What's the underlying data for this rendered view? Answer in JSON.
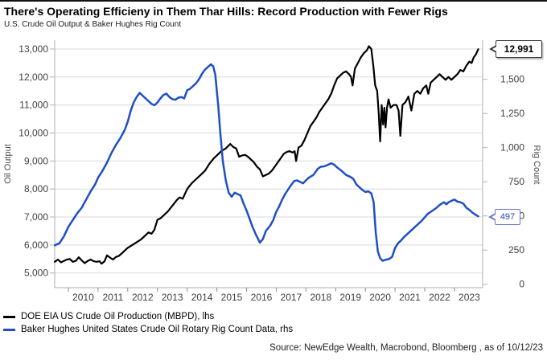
{
  "title": "There's Operating Efficieny in Them Thar Hills: Record Production with Fewer Rigs",
  "subtitle": "U.S. Crude Oil Output & Baker Hughes Rig Count",
  "source": "Source: NewEdge Wealth, Macrobond, Bloomberg , as of 10/12/23",
  "callouts": {
    "production": "12,991",
    "rigs": "497"
  },
  "colors": {
    "production": "#000000",
    "rigs": "#1f4fc5",
    "grid": "#d9d9d9",
    "axis": "#b0b0b0",
    "tick_text": "#404040"
  },
  "chart_data": {
    "type": "line",
    "title": "There's Operating Efficieny in Them Thar Hills: Record Production with Fewer Rigs",
    "subtitle": "U.S. Crude Oil Output & Baker Hughes Rig Count",
    "grid": "horizontal",
    "legend_position": "bottom-left",
    "x_axis": {
      "tick_values": [
        2010,
        2011,
        2012,
        2013,
        2014,
        2015,
        2016,
        2017,
        2018,
        2019,
        2020,
        2021,
        2022,
        2023
      ],
      "tick_labels": [
        "2010",
        "2011",
        "2012",
        "2013",
        "2014",
        "2015",
        "2016",
        "2017",
        "2018",
        "2019",
        "2020",
        "2021",
        "2022",
        "2023"
      ],
      "range": [
        2009.54,
        2023.95
      ]
    },
    "left_axis": {
      "label": "Oil Output",
      "tick_values": [
        5000,
        6000,
        7000,
        8000,
        9000,
        10000,
        11000,
        12000,
        13000
      ],
      "tick_labels": [
        "5,000",
        "6,000",
        "7,000",
        "8,000",
        "9,000",
        "10,000",
        "11,000",
        "12,000",
        "13,000"
      ],
      "range": [
        4475,
        13315
      ]
    },
    "right_axis": {
      "label": "Rig Count",
      "tick_values": [
        0,
        250,
        500,
        750,
        1000,
        1250,
        1500
      ],
      "tick_labels": [
        "0",
        "250",
        "500",
        "750",
        "1,000",
        "1,250",
        "1,500"
      ],
      "range": [
        -25,
        1786
      ]
    },
    "series": [
      {
        "name": "DOE EIA US Crude Oil Production (MBPD), lhs",
        "axis": "left",
        "color": "#000000",
        "last_value": 12991,
        "points": [
          [
            2009.54,
            5400
          ],
          [
            2009.65,
            5480
          ],
          [
            2009.75,
            5380
          ],
          [
            2009.85,
            5430
          ],
          [
            2009.95,
            5480
          ],
          [
            2010.05,
            5500
          ],
          [
            2010.15,
            5400
          ],
          [
            2010.25,
            5430
          ],
          [
            2010.35,
            5560
          ],
          [
            2010.45,
            5450
          ],
          [
            2010.55,
            5350
          ],
          [
            2010.65,
            5430
          ],
          [
            2010.75,
            5480
          ],
          [
            2010.85,
            5420
          ],
          [
            2010.95,
            5400
          ],
          [
            2011.05,
            5420
          ],
          [
            2011.12,
            5330
          ],
          [
            2011.22,
            5420
          ],
          [
            2011.3,
            5630
          ],
          [
            2011.4,
            5550
          ],
          [
            2011.5,
            5480
          ],
          [
            2011.6,
            5570
          ],
          [
            2011.7,
            5610
          ],
          [
            2011.8,
            5700
          ],
          [
            2011.9,
            5800
          ],
          [
            2012.0,
            5900
          ],
          [
            2012.15,
            6000
          ],
          [
            2012.3,
            6100
          ],
          [
            2012.45,
            6200
          ],
          [
            2012.6,
            6350
          ],
          [
            2012.7,
            6450
          ],
          [
            2012.8,
            6400
          ],
          [
            2012.9,
            6550
          ],
          [
            2013.0,
            6900
          ],
          [
            2013.1,
            6950
          ],
          [
            2013.2,
            7050
          ],
          [
            2013.35,
            7200
          ],
          [
            2013.5,
            7400
          ],
          [
            2013.65,
            7600
          ],
          [
            2013.75,
            7700
          ],
          [
            2013.85,
            7650
          ],
          [
            2014.0,
            8000
          ],
          [
            2014.15,
            8200
          ],
          [
            2014.3,
            8350
          ],
          [
            2014.45,
            8500
          ],
          [
            2014.6,
            8650
          ],
          [
            2014.75,
            8900
          ],
          [
            2014.9,
            9100
          ],
          [
            2015.0,
            9200
          ],
          [
            2015.15,
            9350
          ],
          [
            2015.3,
            9450
          ],
          [
            2015.45,
            9610
          ],
          [
            2015.55,
            9500
          ],
          [
            2015.65,
            9450
          ],
          [
            2015.75,
            9150
          ],
          [
            2015.85,
            9200
          ],
          [
            2015.95,
            9220
          ],
          [
            2016.05,
            9150
          ],
          [
            2016.15,
            9050
          ],
          [
            2016.25,
            8950
          ],
          [
            2016.35,
            8800
          ],
          [
            2016.45,
            8700
          ],
          [
            2016.55,
            8450
          ],
          [
            2016.65,
            8500
          ],
          [
            2016.75,
            8550
          ],
          [
            2016.85,
            8650
          ],
          [
            2016.95,
            8800
          ],
          [
            2017.05,
            8950
          ],
          [
            2017.15,
            9100
          ],
          [
            2017.25,
            9250
          ],
          [
            2017.35,
            9320
          ],
          [
            2017.45,
            9350
          ],
          [
            2017.55,
            9300
          ],
          [
            2017.62,
            9350
          ],
          [
            2017.67,
            9000
          ],
          [
            2017.75,
            9480
          ],
          [
            2017.85,
            9550
          ],
          [
            2017.95,
            9750
          ],
          [
            2018.05,
            10000
          ],
          [
            2018.15,
            10250
          ],
          [
            2018.25,
            10400
          ],
          [
            2018.35,
            10550
          ],
          [
            2018.45,
            10750
          ],
          [
            2018.55,
            10900
          ],
          [
            2018.65,
            11050
          ],
          [
            2018.75,
            11200
          ],
          [
            2018.85,
            11400
          ],
          [
            2018.95,
            11700
          ],
          [
            2019.05,
            11950
          ],
          [
            2019.15,
            12050
          ],
          [
            2019.25,
            12150
          ],
          [
            2019.35,
            12200
          ],
          [
            2019.45,
            12100
          ],
          [
            2019.52,
            12000
          ],
          [
            2019.57,
            11700
          ],
          [
            2019.65,
            12300
          ],
          [
            2019.75,
            12500
          ],
          [
            2019.85,
            12700
          ],
          [
            2019.95,
            12850
          ],
          [
            2020.05,
            12950
          ],
          [
            2020.12,
            13100
          ],
          [
            2020.2,
            13000
          ],
          [
            2020.27,
            12400
          ],
          [
            2020.33,
            11700
          ],
          [
            2020.4,
            11500
          ],
          [
            2020.45,
            10700
          ],
          [
            2020.5,
            9700
          ],
          [
            2020.55,
            11000
          ],
          [
            2020.6,
            10300
          ],
          [
            2020.64,
            10900
          ],
          [
            2020.68,
            10200
          ],
          [
            2020.73,
            10900
          ],
          [
            2020.78,
            11200
          ],
          [
            2020.85,
            10900
          ],
          [
            2020.95,
            11000
          ],
          [
            2021.05,
            11000
          ],
          [
            2021.12,
            10800
          ],
          [
            2021.18,
            9900
          ],
          [
            2021.25,
            11000
          ],
          [
            2021.35,
            11100
          ],
          [
            2021.45,
            11300
          ],
          [
            2021.55,
            10800
          ],
          [
            2021.65,
            11400
          ],
          [
            2021.75,
            11500
          ],
          [
            2021.85,
            11400
          ],
          [
            2021.95,
            11600
          ],
          [
            2022.05,
            11700
          ],
          [
            2022.12,
            11400
          ],
          [
            2022.2,
            11800
          ],
          [
            2022.3,
            11900
          ],
          [
            2022.4,
            12000
          ],
          [
            2022.5,
            12100
          ],
          [
            2022.6,
            12000
          ],
          [
            2022.7,
            11900
          ],
          [
            2022.8,
            12000
          ],
          [
            2022.9,
            11900
          ],
          [
            2023.0,
            12000
          ],
          [
            2023.1,
            12100
          ],
          [
            2023.2,
            12250
          ],
          [
            2023.3,
            12200
          ],
          [
            2023.4,
            12400
          ],
          [
            2023.5,
            12550
          ],
          [
            2023.58,
            12500
          ],
          [
            2023.65,
            12700
          ],
          [
            2023.72,
            12800
          ],
          [
            2023.8,
            12991
          ]
        ]
      },
      {
        "name": "Baker Hughes United States Crude Oil Rotary Rig Count Data, rhs",
        "axis": "right",
        "color": "#1f4fc5",
        "last_value": 497,
        "points": [
          [
            2009.54,
            285
          ],
          [
            2009.7,
            300
          ],
          [
            2009.85,
            350
          ],
          [
            2010.0,
            420
          ],
          [
            2010.15,
            470
          ],
          [
            2010.3,
            520
          ],
          [
            2010.45,
            560
          ],
          [
            2010.6,
            620
          ],
          [
            2010.75,
            680
          ],
          [
            2010.9,
            730
          ],
          [
            2011.0,
            780
          ],
          [
            2011.15,
            830
          ],
          [
            2011.3,
            890
          ],
          [
            2011.45,
            960
          ],
          [
            2011.6,
            1020
          ],
          [
            2011.75,
            1070
          ],
          [
            2011.9,
            1130
          ],
          [
            2012.0,
            1190
          ],
          [
            2012.1,
            1270
          ],
          [
            2012.2,
            1330
          ],
          [
            2012.3,
            1370
          ],
          [
            2012.4,
            1400
          ],
          [
            2012.5,
            1380
          ],
          [
            2012.6,
            1360
          ],
          [
            2012.7,
            1340
          ],
          [
            2012.8,
            1320
          ],
          [
            2012.9,
            1310
          ],
          [
            2013.0,
            1330
          ],
          [
            2013.1,
            1360
          ],
          [
            2013.2,
            1385
          ],
          [
            2013.3,
            1395
          ],
          [
            2013.4,
            1370
          ],
          [
            2013.5,
            1355
          ],
          [
            2013.6,
            1350
          ],
          [
            2013.7,
            1365
          ],
          [
            2013.8,
            1370
          ],
          [
            2013.9,
            1360
          ],
          [
            2014.0,
            1420
          ],
          [
            2014.1,
            1430
          ],
          [
            2014.2,
            1450
          ],
          [
            2014.3,
            1470
          ],
          [
            2014.4,
            1500
          ],
          [
            2014.5,
            1540
          ],
          [
            2014.6,
            1570
          ],
          [
            2014.7,
            1590
          ],
          [
            2014.8,
            1609
          ],
          [
            2014.88,
            1595
          ],
          [
            2014.95,
            1530
          ],
          [
            2015.05,
            1300
          ],
          [
            2015.12,
            1100
          ],
          [
            2015.2,
            900
          ],
          [
            2015.3,
            760
          ],
          [
            2015.4,
            670
          ],
          [
            2015.5,
            640
          ],
          [
            2015.6,
            670
          ],
          [
            2015.7,
            660
          ],
          [
            2015.8,
            650
          ],
          [
            2015.9,
            590
          ],
          [
            2016.0,
            540
          ],
          [
            2016.1,
            480
          ],
          [
            2016.2,
            420
          ],
          [
            2016.3,
            370
          ],
          [
            2016.45,
            305
          ],
          [
            2016.55,
            330
          ],
          [
            2016.65,
            390
          ],
          [
            2016.8,
            430
          ],
          [
            2016.9,
            470
          ],
          [
            2017.0,
            530
          ],
          [
            2017.1,
            570
          ],
          [
            2017.2,
            620
          ],
          [
            2017.3,
            660
          ],
          [
            2017.45,
            710
          ],
          [
            2017.6,
            755
          ],
          [
            2017.7,
            760
          ],
          [
            2017.8,
            750
          ],
          [
            2017.9,
            738
          ],
          [
            2018.0,
            760
          ],
          [
            2018.1,
            780
          ],
          [
            2018.25,
            800
          ],
          [
            2018.4,
            845
          ],
          [
            2018.5,
            860
          ],
          [
            2018.6,
            862
          ],
          [
            2018.7,
            870
          ],
          [
            2018.85,
            885
          ],
          [
            2018.95,
            875
          ],
          [
            2019.05,
            855
          ],
          [
            2019.2,
            830
          ],
          [
            2019.35,
            800
          ],
          [
            2019.5,
            785
          ],
          [
            2019.6,
            770
          ],
          [
            2019.7,
            730
          ],
          [
            2019.8,
            710
          ],
          [
            2019.9,
            690
          ],
          [
            2020.0,
            675
          ],
          [
            2020.1,
            680
          ],
          [
            2020.2,
            665
          ],
          [
            2020.28,
            600
          ],
          [
            2020.35,
            380
          ],
          [
            2020.42,
            240
          ],
          [
            2020.5,
            190
          ],
          [
            2020.58,
            172
          ],
          [
            2020.7,
            180
          ],
          [
            2020.8,
            185
          ],
          [
            2020.9,
            200
          ],
          [
            2021.0,
            265
          ],
          [
            2021.1,
            300
          ],
          [
            2021.2,
            320
          ],
          [
            2021.3,
            345
          ],
          [
            2021.4,
            365
          ],
          [
            2021.5,
            385
          ],
          [
            2021.6,
            405
          ],
          [
            2021.7,
            425
          ],
          [
            2021.8,
            445
          ],
          [
            2021.9,
            465
          ],
          [
            2022.0,
            490
          ],
          [
            2022.1,
            515
          ],
          [
            2022.2,
            530
          ],
          [
            2022.3,
            545
          ],
          [
            2022.4,
            560
          ],
          [
            2022.5,
            580
          ],
          [
            2022.6,
            595
          ],
          [
            2022.65,
            600
          ],
          [
            2022.73,
            585
          ],
          [
            2022.8,
            600
          ],
          [
            2022.9,
            610
          ],
          [
            2023.0,
            620
          ],
          [
            2023.1,
            605
          ],
          [
            2023.2,
            600
          ],
          [
            2023.3,
            590
          ],
          [
            2023.4,
            560
          ],
          [
            2023.5,
            545
          ],
          [
            2023.6,
            525
          ],
          [
            2023.7,
            510
          ],
          [
            2023.8,
            497
          ]
        ]
      }
    ]
  }
}
